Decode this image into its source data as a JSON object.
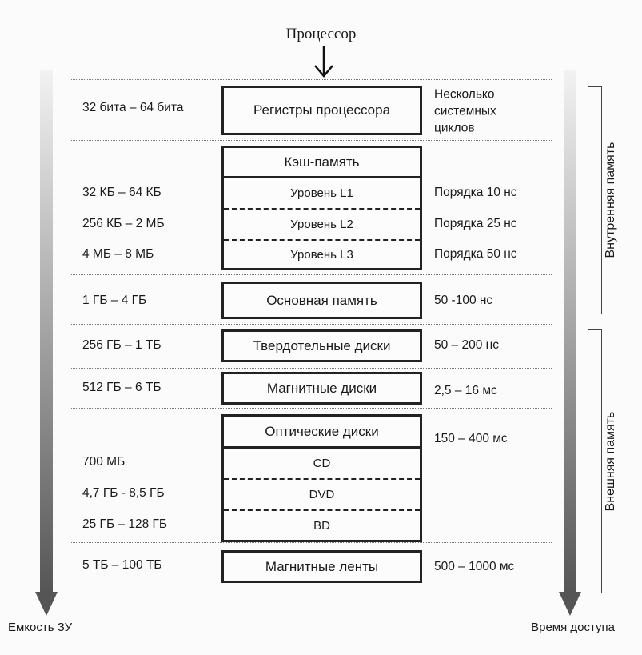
{
  "title": "Процессор",
  "axes": {
    "left_label": "Емкость ЗУ",
    "right_label": "Время доступа"
  },
  "groups": {
    "internal": "Внутренняя память",
    "external": "Внешняя память"
  },
  "levels": {
    "registers": {
      "name": "Регистры процессора",
      "capacity": "32 бита – 64 бита",
      "access_lines": [
        "Несколько",
        "системных",
        "циклов"
      ]
    },
    "cache": {
      "name": "Кэш-память",
      "sublevels": [
        {
          "name": "Уровень L1",
          "capacity": "32 КБ – 64 КБ",
          "access": "Порядка 10 нс"
        },
        {
          "name": "Уровень L2",
          "capacity": "256 КБ – 2 МБ",
          "access": "Порядка 25 нс"
        },
        {
          "name": "Уровень L3",
          "capacity": "4 МБ – 8 МБ",
          "access": "Порядка 50 нс"
        }
      ]
    },
    "main": {
      "name": "Основная память",
      "capacity": "1 ГБ – 4 ГБ",
      "access": "50 -100 нс"
    },
    "ssd": {
      "name": "Твердотельные диски",
      "capacity": "256 ГБ – 1 ТБ",
      "access": "50 – 200 нс"
    },
    "hdd": {
      "name": "Магнитные диски",
      "capacity": "512 ГБ – 6 ТБ",
      "access": "2,5 – 16 мс"
    },
    "optical": {
      "name": "Оптические диски",
      "access": "150 – 400 мс",
      "sublevels": [
        {
          "name": "CD",
          "capacity": "700 МБ"
        },
        {
          "name": "DVD",
          "capacity": "4,7 ГБ - 8,5 ГБ"
        },
        {
          "name": "BD",
          "capacity": "25 ГБ – 128 ГБ"
        }
      ]
    },
    "tape": {
      "name": "Магнитные ленты",
      "capacity": "5 ТБ – 100 ТБ",
      "access": "500 – 1000 мс"
    }
  }
}
